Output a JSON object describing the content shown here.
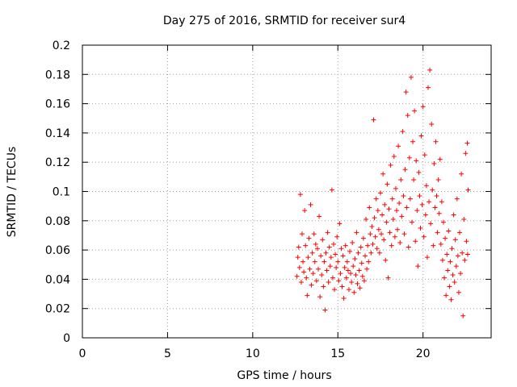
{
  "chart_data": {
    "type": "scatter",
    "title": "Day 275 of 2016, SRMTID for receiver sur4",
    "xlabel": "GPS time / hours",
    "ylabel": "SRMTID / TECUs",
    "xlim": [
      0,
      24
    ],
    "ylim": [
      0,
      0.2
    ],
    "xticks": [
      "0",
      "5",
      "10",
      "15",
      "20"
    ],
    "yticks": [
      "0",
      "0.02",
      "0.04",
      "0.06",
      "0.08",
      "0.1",
      "0.12",
      "0.14",
      "0.16",
      "0.18",
      "0.2"
    ],
    "grid": true,
    "marker": "+",
    "color": "#ff0000",
    "series": [
      {
        "name": "sur4",
        "points": [
          [
            12.6,
            0.042
          ],
          [
            12.65,
            0.055
          ],
          [
            12.7,
            0.062
          ],
          [
            12.75,
            0.048
          ],
          [
            12.8,
            0.098
          ],
          [
            12.85,
            0.038
          ],
          [
            12.9,
            0.071
          ],
          [
            12.95,
            0.052
          ],
          [
            13.0,
            0.045
          ],
          [
            13.05,
            0.087
          ],
          [
            13.1,
            0.063
          ],
          [
            13.15,
            0.041
          ],
          [
            13.2,
            0.029
          ],
          [
            13.25,
            0.055
          ],
          [
            13.3,
            0.068
          ],
          [
            13.35,
            0.047
          ],
          [
            13.4,
            0.091
          ],
          [
            13.45,
            0.036
          ],
          [
            13.5,
            0.058
          ],
          [
            13.55,
            0.044
          ],
          [
            13.6,
            0.071
          ],
          [
            13.65,
            0.052
          ],
          [
            13.7,
            0.064
          ],
          [
            13.75,
            0.039
          ],
          [
            13.8,
            0.061
          ],
          [
            13.85,
            0.047
          ],
          [
            13.9,
            0.083
          ],
          [
            13.95,
            0.028
          ],
          [
            14.0,
            0.056
          ],
          [
            14.05,
            0.043
          ],
          [
            14.1,
            0.067
          ],
          [
            14.15,
            0.035
          ],
          [
            14.2,
            0.052
          ],
          [
            14.25,
            0.019
          ],
          [
            14.3,
            0.058
          ],
          [
            14.35,
            0.046
          ],
          [
            14.4,
            0.072
          ],
          [
            14.45,
            0.038
          ],
          [
            14.5,
            0.062
          ],
          [
            14.55,
            0.049
          ],
          [
            14.6,
            0.055
          ],
          [
            14.65,
            0.101
          ],
          [
            14.7,
            0.041
          ],
          [
            14.75,
            0.064
          ],
          [
            14.8,
            0.033
          ],
          [
            14.85,
            0.057
          ],
          [
            14.9,
            0.048
          ],
          [
            14.95,
            0.069
          ],
          [
            15.0,
            0.052
          ],
          [
            15.05,
            0.039
          ],
          [
            15.1,
            0.078
          ],
          [
            15.15,
            0.044
          ],
          [
            15.2,
            0.061
          ],
          [
            15.25,
            0.035
          ],
          [
            15.3,
            0.056
          ],
          [
            15.35,
            0.027
          ],
          [
            15.4,
            0.048
          ],
          [
            15.45,
            0.063
          ],
          [
            15.5,
            0.041
          ],
          [
            15.55,
            0.052
          ],
          [
            15.6,
            0.046
          ],
          [
            15.65,
            0.033
          ],
          [
            15.7,
            0.059
          ],
          [
            15.75,
            0.044
          ],
          [
            15.8,
            0.038
          ],
          [
            15.85,
            0.065
          ],
          [
            15.9,
            0.049
          ],
          [
            15.95,
            0.031
          ],
          [
            16.0,
            0.054
          ],
          [
            16.05,
            0.043
          ],
          [
            16.1,
            0.072
          ],
          [
            16.15,
            0.037
          ],
          [
            16.2,
            0.058
          ],
          [
            16.25,
            0.046
          ],
          [
            16.3,
            0.034
          ],
          [
            16.35,
            0.062
          ],
          [
            16.4,
            0.051
          ],
          [
            16.45,
            0.042
          ],
          [
            16.5,
            0.068
          ],
          [
            16.55,
            0.039
          ],
          [
            16.6,
            0.056
          ],
          [
            16.65,
            0.081
          ],
          [
            16.7,
            0.047
          ],
          [
            16.75,
            0.063
          ],
          [
            16.8,
            0.052
          ],
          [
            16.85,
            0.089
          ],
          [
            16.9,
            0.071
          ],
          [
            16.95,
            0.058
          ],
          [
            17.0,
            0.076
          ],
          [
            17.05,
            0.064
          ],
          [
            17.1,
            0.149
          ],
          [
            17.15,
            0.082
          ],
          [
            17.2,
            0.069
          ],
          [
            17.25,
            0.095
          ],
          [
            17.3,
            0.061
          ],
          [
            17.35,
            0.087
          ],
          [
            17.4,
            0.074
          ],
          [
            17.45,
            0.058
          ],
          [
            17.5,
            0.099
          ],
          [
            17.55,
            0.071
          ],
          [
            17.6,
            0.084
          ],
          [
            17.65,
            0.112
          ],
          [
            17.7,
            0.067
          ],
          [
            17.75,
            0.091
          ],
          [
            17.8,
            0.053
          ],
          [
            17.85,
            0.079
          ],
          [
            17.9,
            0.105
          ],
          [
            17.95,
            0.041
          ],
          [
            18.0,
            0.088
          ],
          [
            18.05,
            0.072
          ],
          [
            18.1,
            0.118
          ],
          [
            18.15,
            0.063
          ],
          [
            18.2,
            0.095
          ],
          [
            18.25,
            0.081
          ],
          [
            18.3,
            0.124
          ],
          [
            18.35,
            0.069
          ],
          [
            18.4,
            0.102
          ],
          [
            18.45,
            0.087
          ],
          [
            18.5,
            0.074
          ],
          [
            18.55,
            0.131
          ],
          [
            18.6,
            0.092
          ],
          [
            18.65,
            0.065
          ],
          [
            18.7,
            0.108
          ],
          [
            18.75,
            0.083
          ],
          [
            18.8,
            0.141
          ],
          [
            18.85,
            0.097
          ],
          [
            18.9,
            0.071
          ],
          [
            18.95,
            0.115
          ],
          [
            19.0,
            0.168
          ],
          [
            19.05,
            0.089
          ],
          [
            19.1,
            0.152
          ],
          [
            19.15,
            0.062
          ],
          [
            19.2,
            0.123
          ],
          [
            19.25,
            0.095
          ],
          [
            19.3,
            0.178
          ],
          [
            19.35,
            0.079
          ],
          [
            19.4,
            0.134
          ],
          [
            19.45,
            0.108
          ],
          [
            19.5,
            0.155
          ],
          [
            19.55,
            0.066
          ],
          [
            19.6,
            0.121
          ],
          [
            19.65,
            0.087
          ],
          [
            19.7,
            0.049
          ],
          [
            19.75,
            0.113
          ],
          [
            19.8,
            0.097
          ],
          [
            19.85,
            0.075
          ],
          [
            19.9,
            0.138
          ],
          [
            19.95,
            0.091
          ],
          [
            20.0,
            0.158
          ],
          [
            20.05,
            0.069
          ],
          [
            20.1,
            0.125
          ],
          [
            20.15,
            0.084
          ],
          [
            20.2,
            0.104
          ],
          [
            20.25,
            0.055
          ],
          [
            20.3,
            0.171
          ],
          [
            20.35,
            0.093
          ],
          [
            20.4,
            0.183
          ],
          [
            20.45,
            0.078
          ],
          [
            20.5,
            0.146
          ],
          [
            20.55,
            0.101
          ],
          [
            20.6,
            0.063
          ],
          [
            20.65,
            0.119
          ],
          [
            20.7,
            0.089
          ],
          [
            20.75,
            0.134
          ],
          [
            20.8,
            0.097
          ],
          [
            20.85,
            0.072
          ],
          [
            20.9,
            0.108
          ],
          [
            20.95,
            0.085
          ],
          [
            21.0,
            0.122
          ],
          [
            21.05,
            0.064
          ],
          [
            21.1,
            0.093
          ],
          [
            21.15,
            0.053
          ],
          [
            21.2,
            0.079
          ],
          [
            21.25,
            0.041
          ],
          [
            21.3,
            0.068
          ],
          [
            21.35,
            0.029
          ],
          [
            21.4,
            0.057
          ],
          [
            21.45,
            0.046
          ],
          [
            21.5,
            0.073
          ],
          [
            21.55,
            0.035
          ],
          [
            21.6,
            0.052
          ],
          [
            21.65,
            0.026
          ],
          [
            21.7,
            0.061
          ],
          [
            21.75,
            0.043
          ],
          [
            21.8,
            0.084
          ],
          [
            21.85,
            0.038
          ],
          [
            21.9,
            0.067
          ],
          [
            21.95,
            0.049
          ],
          [
            22.0,
            0.095
          ],
          [
            22.05,
            0.056
          ],
          [
            22.1,
            0.031
          ],
          [
            22.15,
            0.072
          ],
          [
            22.2,
            0.044
          ],
          [
            22.25,
            0.112
          ],
          [
            22.3,
            0.058
          ],
          [
            22.35,
            0.015
          ],
          [
            22.4,
            0.081
          ],
          [
            22.45,
            0.053
          ],
          [
            22.5,
            0.126
          ],
          [
            22.55,
            0.066
          ],
          [
            22.6,
            0.133
          ],
          [
            22.62,
            0.057
          ],
          [
            22.65,
            0.101
          ]
        ]
      }
    ]
  }
}
